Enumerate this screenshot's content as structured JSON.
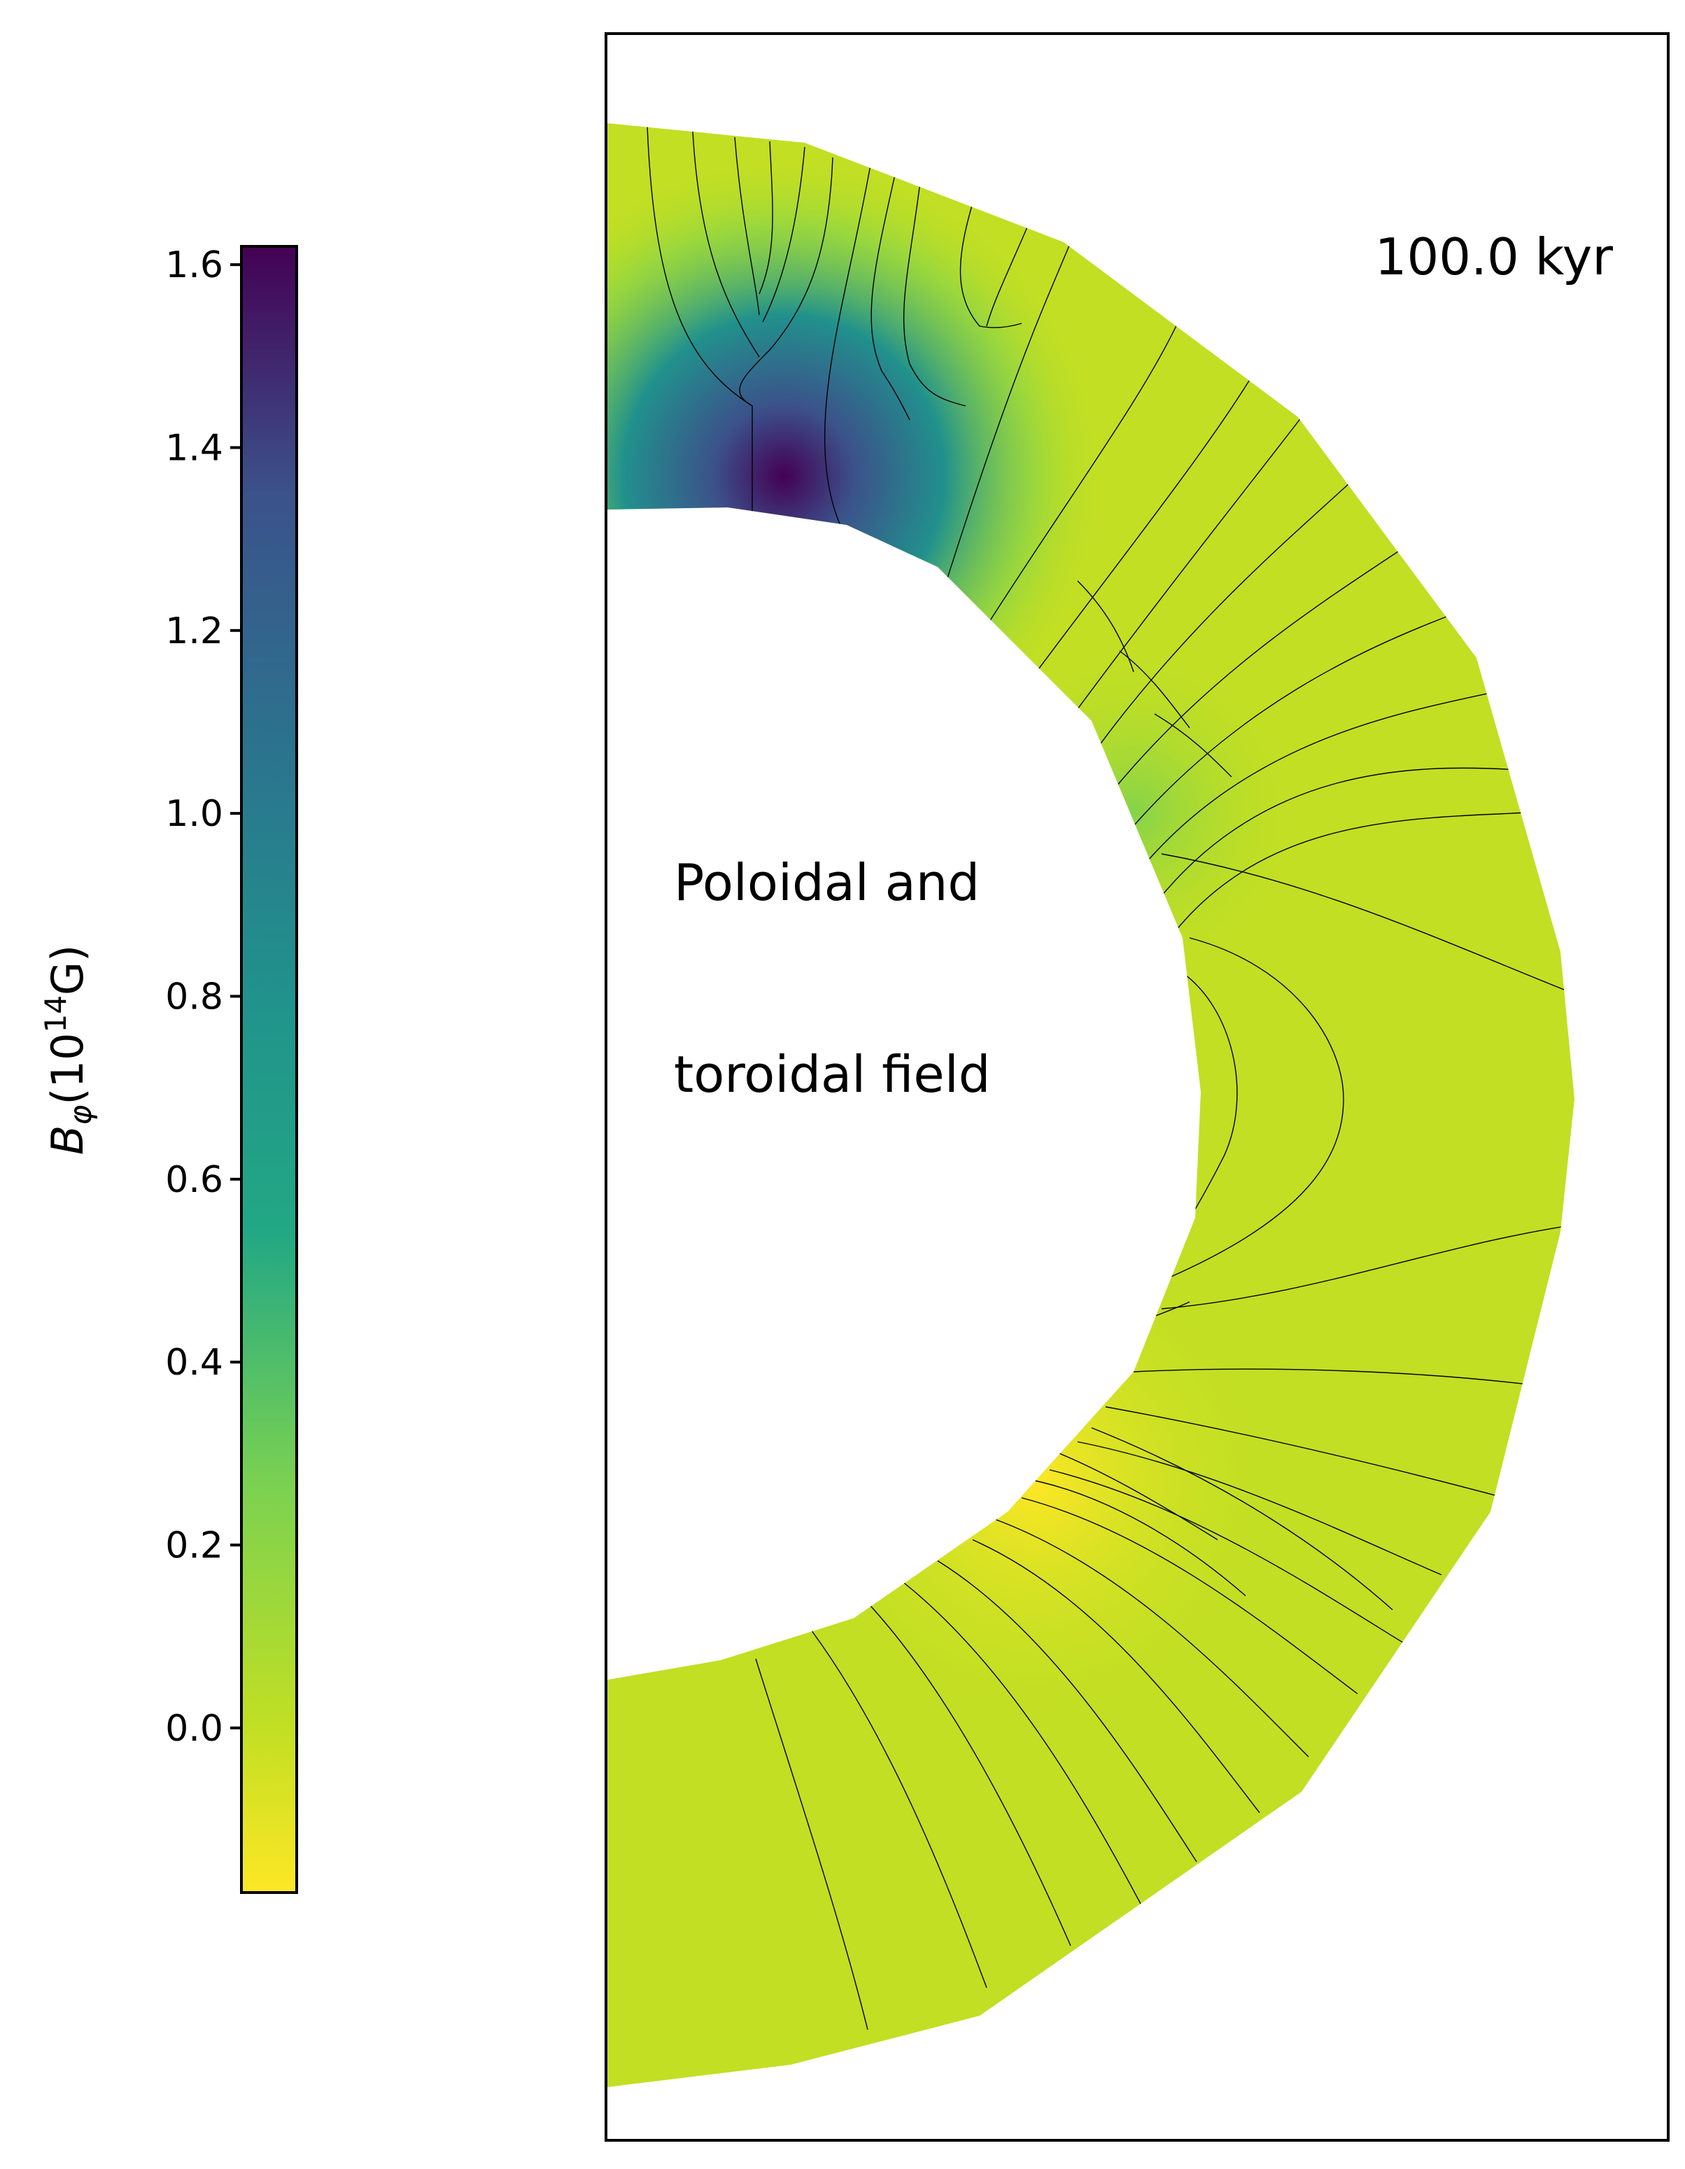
{
  "chart_data": {
    "type": "heatmap",
    "plot": "meridional cross-section of a neutron-star crust (half annulus)",
    "quantity": "toroidal magnetic field with poloidal field lines",
    "time_label": "100.0 kyr",
    "annotation_line1": "Poloidal and",
    "annotation_line2": "toroidal field",
    "colorbar": {
      "label_symbol": "B",
      "label_subscript": "φ",
      "label_unit_pre": "(10",
      "label_exponent": "14",
      "label_unit_post": "G)",
      "colormap": "viridis (reversed)",
      "min": -0.18,
      "max": 1.62,
      "ticks": [
        0.0,
        0.2,
        0.4,
        0.6,
        0.8,
        1.0,
        1.2,
        1.4,
        1.6
      ],
      "tick_labels": [
        "0.0",
        "0.2",
        "0.4",
        "0.6",
        "0.8",
        "1.0",
        "1.2",
        "1.4",
        "1.6"
      ]
    },
    "field_summary": {
      "background_value": 0.05,
      "peak_value": 1.62,
      "peak_region": "upper crust near inner boundary, polar region",
      "minimum_value": -0.18,
      "minimum_region": "inner boundary just below equator",
      "field_line_count": 44
    },
    "colors": {
      "frame": "#000000",
      "field_lines": "#000000",
      "background": "#ffffff"
    }
  }
}
